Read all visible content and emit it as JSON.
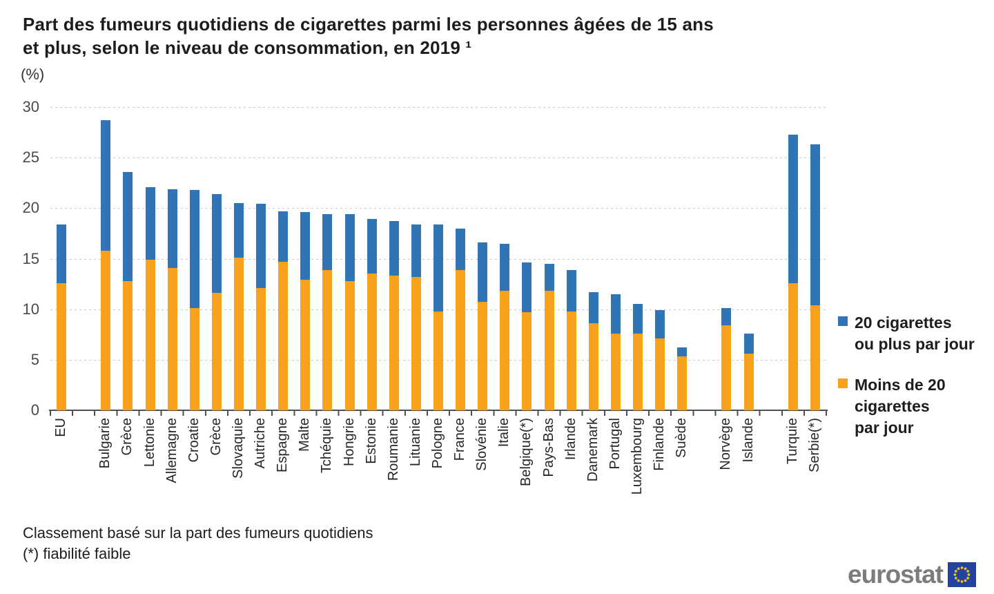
{
  "header": {
    "title_line1": "Part des fumeurs quotidiens de cigarettes parmi les personnes âgées de 15 ans",
    "title_line2": "et plus, selon le niveau de consommation, en  2019 ¹",
    "unit_label": "(%)"
  },
  "legend": {
    "items": [
      {
        "series": "20 cigarettes ou plus par jour",
        "color": "#2e74b6",
        "label_lines": [
          "20 cigarettes",
          "ou plus par jour"
        ]
      },
      {
        "series": "Moins de 20 cigarettes par jour",
        "color": "#f9a11b",
        "label_lines": [
          "Moins de 20",
          "cigarettes",
          "par jour"
        ]
      }
    ]
  },
  "footnotes": {
    "line1": "Classement basé sur la part des fumeurs quotidiens",
    "line2": "(*) fiabilité faible"
  },
  "logo": {
    "text": "eurostat",
    "flag_blue": "#2443a0",
    "star_yellow": "#e7c31c"
  },
  "chart_data": {
    "type": "bar",
    "subtype": "stacked",
    "title": "Part des fumeurs quotidiens de cigarettes parmi les personnes âgées de 15 ans et plus, selon le niveau de consommation, en 2019",
    "ylabel": "(%)",
    "ylim": [
      0,
      30
    ],
    "yticks": [
      0,
      5,
      10,
      15,
      20,
      25,
      30
    ],
    "grid": "dashed-horizontal",
    "legend_position": "right",
    "series_meta": [
      {
        "name": "Moins de 20 cigarettes par jour",
        "key": "less20",
        "color": "#f9a11b",
        "stack_order": "bottom"
      },
      {
        "name": "20 cigarettes ou plus par jour",
        "key": "more20",
        "color": "#2e74b6",
        "stack_order": "top"
      }
    ],
    "groups": [
      [
        {
          "label": "EU",
          "less20": 12.6,
          "more20": 5.8
        }
      ],
      [
        {
          "label": "Bulgarie",
          "less20": 15.8,
          "more20": 12.9
        },
        {
          "label": "Grèce",
          "less20": 12.8,
          "more20": 10.8
        },
        {
          "label": "Lettonie",
          "less20": 14.9,
          "more20": 7.2
        },
        {
          "label": "Allemagne",
          "less20": 14.1,
          "more20": 7.8
        },
        {
          "label": "Croatie",
          "less20": 10.1,
          "more20": 11.7
        },
        {
          "label": "Grèce",
          "less20": 11.6,
          "more20": 9.8
        },
        {
          "label": "Slovaquie",
          "less20": 15.1,
          "more20": 5.4
        },
        {
          "label": "Autriche",
          "less20": 12.1,
          "more20": 8.3
        },
        {
          "label": "Espagne",
          "less20": 14.7,
          "more20": 5.0
        },
        {
          "label": "Malte",
          "less20": 12.9,
          "more20": 6.7
        },
        {
          "label": "Tchéquie",
          "less20": 13.9,
          "more20": 5.5
        },
        {
          "label": "Hongrie",
          "less20": 12.8,
          "more20": 6.6
        },
        {
          "label": "Estonie",
          "less20": 13.5,
          "more20": 5.4
        },
        {
          "label": "Roumanie",
          "less20": 13.3,
          "more20": 5.4
        },
        {
          "label": "Lituanie",
          "less20": 13.2,
          "more20": 5.2
        },
        {
          "label": "Pologne",
          "less20": 9.8,
          "more20": 8.6
        },
        {
          "label": "France",
          "less20": 13.9,
          "more20": 4.1
        },
        {
          "label": "Slovénie",
          "less20": 10.7,
          "more20": 5.9
        },
        {
          "label": "Italie",
          "less20": 11.8,
          "more20": 4.7
        },
        {
          "label": "Belgique(*)",
          "less20": 9.7,
          "more20": 4.9
        },
        {
          "label": "Pays-Bas",
          "less20": 11.8,
          "more20": 2.7
        },
        {
          "label": "Irlande",
          "less20": 9.8,
          "more20": 4.1
        },
        {
          "label": "Danemark",
          "less20": 8.6,
          "more20": 3.1
        },
        {
          "label": "Portugal",
          "less20": 7.6,
          "more20": 3.9
        },
        {
          "label": "Luxembourg",
          "less20": 7.6,
          "more20": 2.9
        },
        {
          "label": "Finlande",
          "less20": 7.1,
          "more20": 2.8
        },
        {
          "label": "Suède",
          "less20": 5.3,
          "more20": 0.9
        }
      ],
      [
        {
          "label": "Norvège",
          "less20": 8.4,
          "more20": 1.7
        },
        {
          "label": "Islande",
          "less20": 5.6,
          "more20": 2.0
        }
      ],
      [
        {
          "label": "Turquie",
          "less20": 12.6,
          "more20": 14.7
        },
        {
          "label": "Serbie(*)",
          "less20": 10.4,
          "more20": 15.9
        }
      ]
    ]
  }
}
